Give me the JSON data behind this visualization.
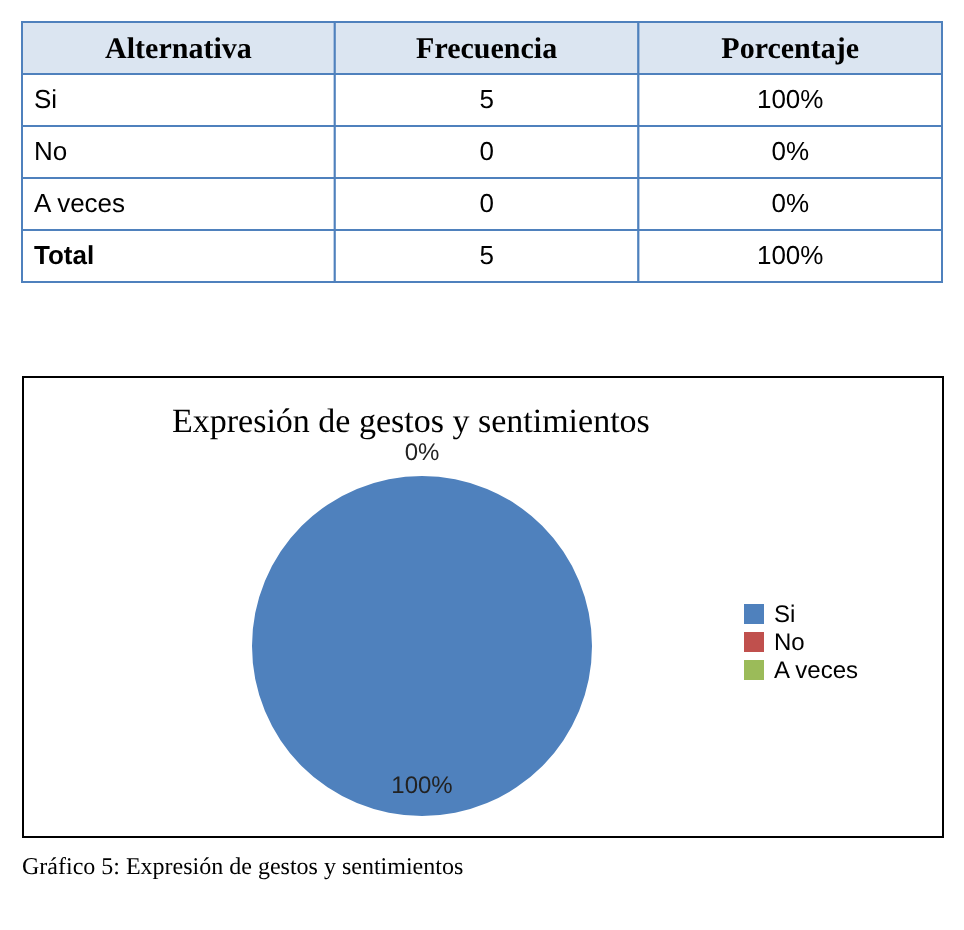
{
  "chart_data": [
    {
      "type": "other",
      "xlabel": "Alternativa",
      "data_labels": true,
      "categories": [
        "Si",
        "No",
        "A veces",
        "Total"
      ],
      "series": [
        {
          "name": "Frecuencia",
          "values": [
            5,
            0,
            0,
            5
          ]
        },
        {
          "name": "Porcentaje",
          "values": [
            100,
            0,
            0,
            100
          ],
          "value_labels": [
            "100%",
            "0%",
            "0%",
            "100%"
          ]
        }
      ]
    },
    {
      "type": "pie",
      "title": "Expresión de gestos y sentimientos",
      "categories": [
        "Si",
        "No",
        "A veces"
      ],
      "values": [
        100,
        0,
        0
      ],
      "colors": [
        "#4f81bd",
        "#c0504d",
        "#9bbb59"
      ],
      "value_labels": [
        "100%",
        "0%",
        null
      ],
      "legend": "right",
      "annotations": [
        "Gráfico 5: Expresión de gestos y sentimientos"
      ]
    }
  ]
}
